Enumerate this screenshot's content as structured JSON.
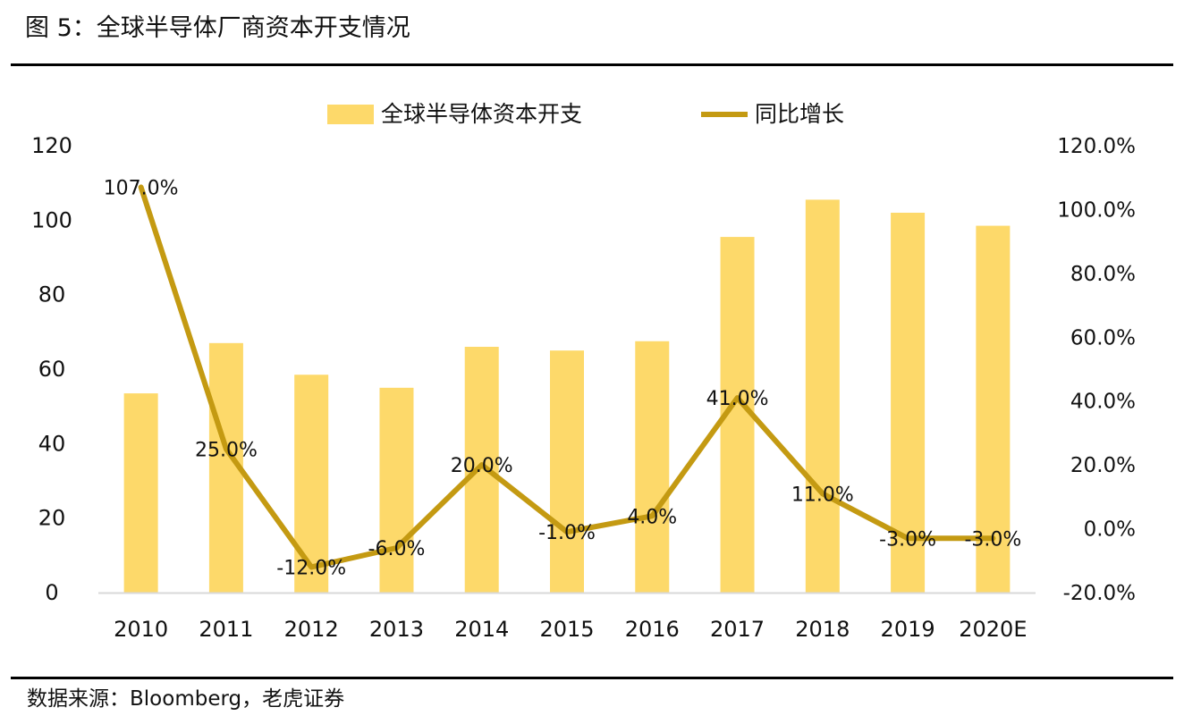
{
  "header": {
    "title": "图 5：全球半导体厂商资本开支情况"
  },
  "footer": {
    "source": "数据来源：Bloomberg，老虎证券"
  },
  "colors": {
    "bar": "#FDD96A",
    "line": "#C49A12",
    "axis": "#D9D9D9",
    "text": "#111111"
  },
  "chart_data": {
    "type": "bar",
    "title": "",
    "categories": [
      "2010",
      "2011",
      "2012",
      "2013",
      "2014",
      "2015",
      "2016",
      "2017",
      "2018",
      "2019",
      "2020E"
    ],
    "series": [
      {
        "name": "全球半导体资本开支",
        "type": "bar",
        "axis": "left",
        "values": [
          53.5,
          67,
          58.5,
          55,
          66,
          65,
          67.5,
          95.5,
          105.5,
          102,
          98.5
        ]
      },
      {
        "name": "同比增长",
        "type": "line",
        "axis": "right",
        "values": [
          107,
          25,
          -12,
          -6,
          20,
          -1,
          4,
          41,
          11,
          -3,
          -3
        ],
        "labels": [
          "107.0%",
          "25.0%",
          "-12.0%",
          "-6.0%",
          "20.0%",
          "-1.0%",
          "4.0%",
          "41.0%",
          "11.0%",
          "-3.0%",
          "-3.0%"
        ]
      }
    ],
    "y_left": {
      "ylim": [
        0,
        120
      ],
      "ticks": [
        "0",
        "20",
        "40",
        "60",
        "80",
        "100",
        "120"
      ]
    },
    "y_right": {
      "ylim": [
        -20,
        120
      ],
      "ticks": [
        "-20.0%",
        "0.0%",
        "20.0%",
        "40.0%",
        "60.0%",
        "80.0%",
        "100.0%",
        "120.0%"
      ]
    },
    "legend": {
      "position": "top-center"
    },
    "grid": false
  }
}
